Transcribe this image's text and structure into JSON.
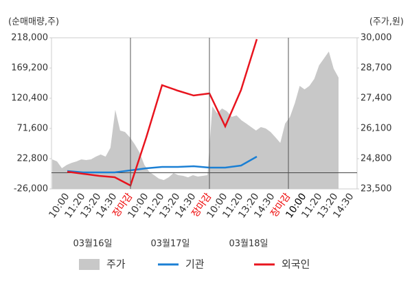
{
  "chart_data": {
    "type": "line",
    "left_axis_label": "(순매매량,주)",
    "right_axis_label": "(주가,원)",
    "categories": [
      "10:00",
      "11:20",
      "13:20",
      "14:30",
      "장마감",
      "10:00",
      "11:20",
      "13:20",
      "14:30",
      "장마감",
      "10:00",
      "11:20",
      "13:20",
      "14:30",
      "장마감",
      "10:00",
      "11:20",
      "13:20",
      "14:30"
    ],
    "x_tick_label_colors": [
      "#333",
      "#333",
      "#333",
      "#333",
      "#e00",
      "#333",
      "#333",
      "#333",
      "#333",
      "#e00",
      "#333",
      "#333",
      "#333",
      "#333",
      "#e00",
      "#000",
      "#333",
      "#333",
      "#333"
    ],
    "date_labels": [
      "03월16일",
      "03월17일",
      "03월18일"
    ],
    "ylim": [
      -26000,
      218000
    ],
    "yticks": [
      {
        "value": -26000,
        "label": "-26,000"
      },
      {
        "value": 22800,
        "label": "22,800"
      },
      {
        "value": 71600,
        "label": "71,600"
      },
      {
        "value": 120400,
        "label": "120,400"
      },
      {
        "value": 169200,
        "label": "169,200"
      },
      {
        "value": 218000,
        "label": "218,000"
      }
    ],
    "y2lim": [
      23500,
      30000
    ],
    "y2ticks": [
      {
        "value": 23500,
        "label": "23,500"
      },
      {
        "value": 24800,
        "label": "24,800"
      },
      {
        "value": 26100,
        "label": "26,100"
      },
      {
        "value": 27400,
        "label": "27,400"
      },
      {
        "value": 28700,
        "label": "28,700"
      },
      {
        "value": 30000,
        "label": "30,000"
      }
    ],
    "price_series": {
      "name": "주가",
      "color": "#c8c8c8",
      "axis": "y2",
      "values": [
        24770,
        24680,
        24390,
        24530,
        24620,
        24680,
        24770,
        24740,
        24770,
        24890,
        24980,
        24890,
        25270,
        26900,
        26010,
        25950,
        25720,
        25420,
        25070,
        24530,
        24240,
        24090,
        23940,
        23880,
        24000,
        24180,
        24090,
        24060,
        24000,
        24090,
        24030,
        24060,
        24090,
        27050,
        26750,
        26960,
        26840,
        26600,
        26660,
        26450,
        26310,
        26160,
        26010,
        26160,
        26100,
        25950,
        25720,
        25480,
        26310,
        26600,
        27190,
        27930,
        27780,
        27930,
        28230,
        28820,
        29110,
        29410,
        28670,
        28290
      ]
    },
    "series": [
      {
        "name": "기관",
        "color": "#1a7fd4",
        "values": [
          2800,
          600,
          600,
          600,
          3900,
          7300,
          9500,
          9500,
          10600,
          8400,
          8400,
          11700,
          26100,
          null,
          null,
          null,
          null,
          null,
          null
        ]
      },
      {
        "name": "외국인",
        "color": "#e8141e",
        "values": [
          1700,
          -1600,
          -4900,
          -7100,
          -20500,
          57200,
          141500,
          132600,
          124800,
          128200,
          74900,
          133700,
          215800,
          null,
          null,
          null,
          null,
          null,
          null
        ]
      }
    ]
  }
}
